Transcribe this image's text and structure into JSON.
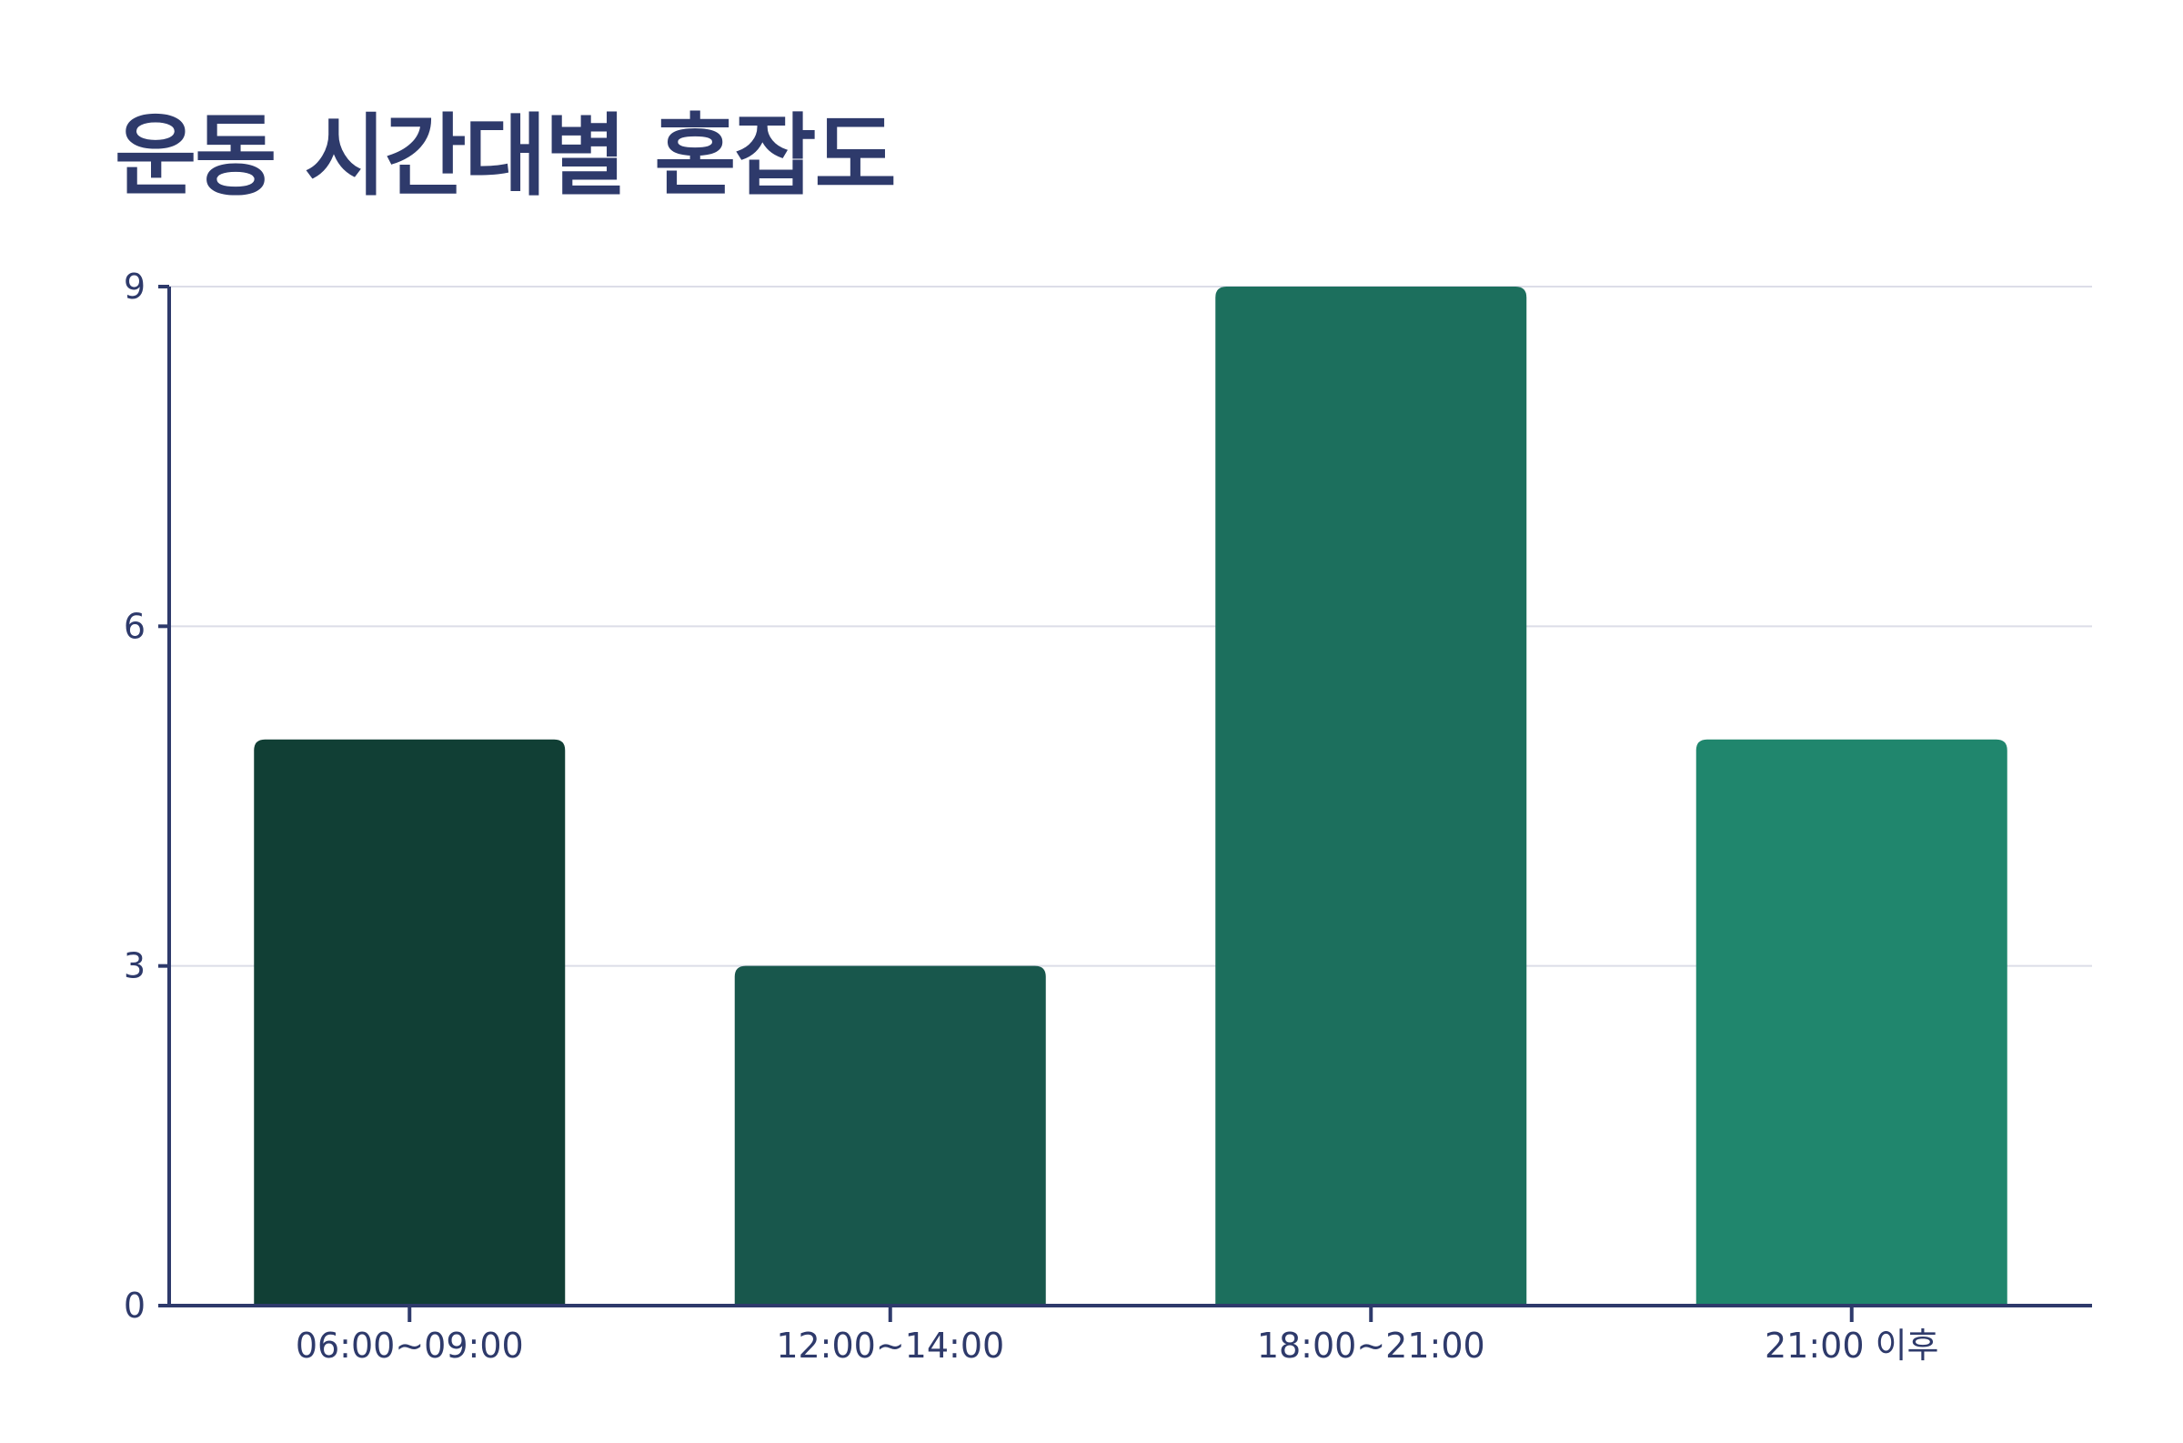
{
  "chart_data": {
    "type": "bar",
    "title": "운동 시간대별 혼잡도",
    "xlabel": "",
    "ylabel": "",
    "categories": [
      "06:00~09:00",
      "12:00~14:00",
      "18:00~21:00",
      "21:00 이후"
    ],
    "values": [
      5,
      3,
      9,
      5
    ],
    "ylim": [
      0,
      9
    ],
    "yticks": [
      0,
      3,
      6,
      9
    ],
    "grid": true,
    "legend": "none",
    "colors": [
      "#113f35",
      "#18574c",
      "#1c6f5d",
      "#20866d"
    ],
    "axis_color": "#2e3a6b",
    "grid_color": "#dcdde8"
  }
}
